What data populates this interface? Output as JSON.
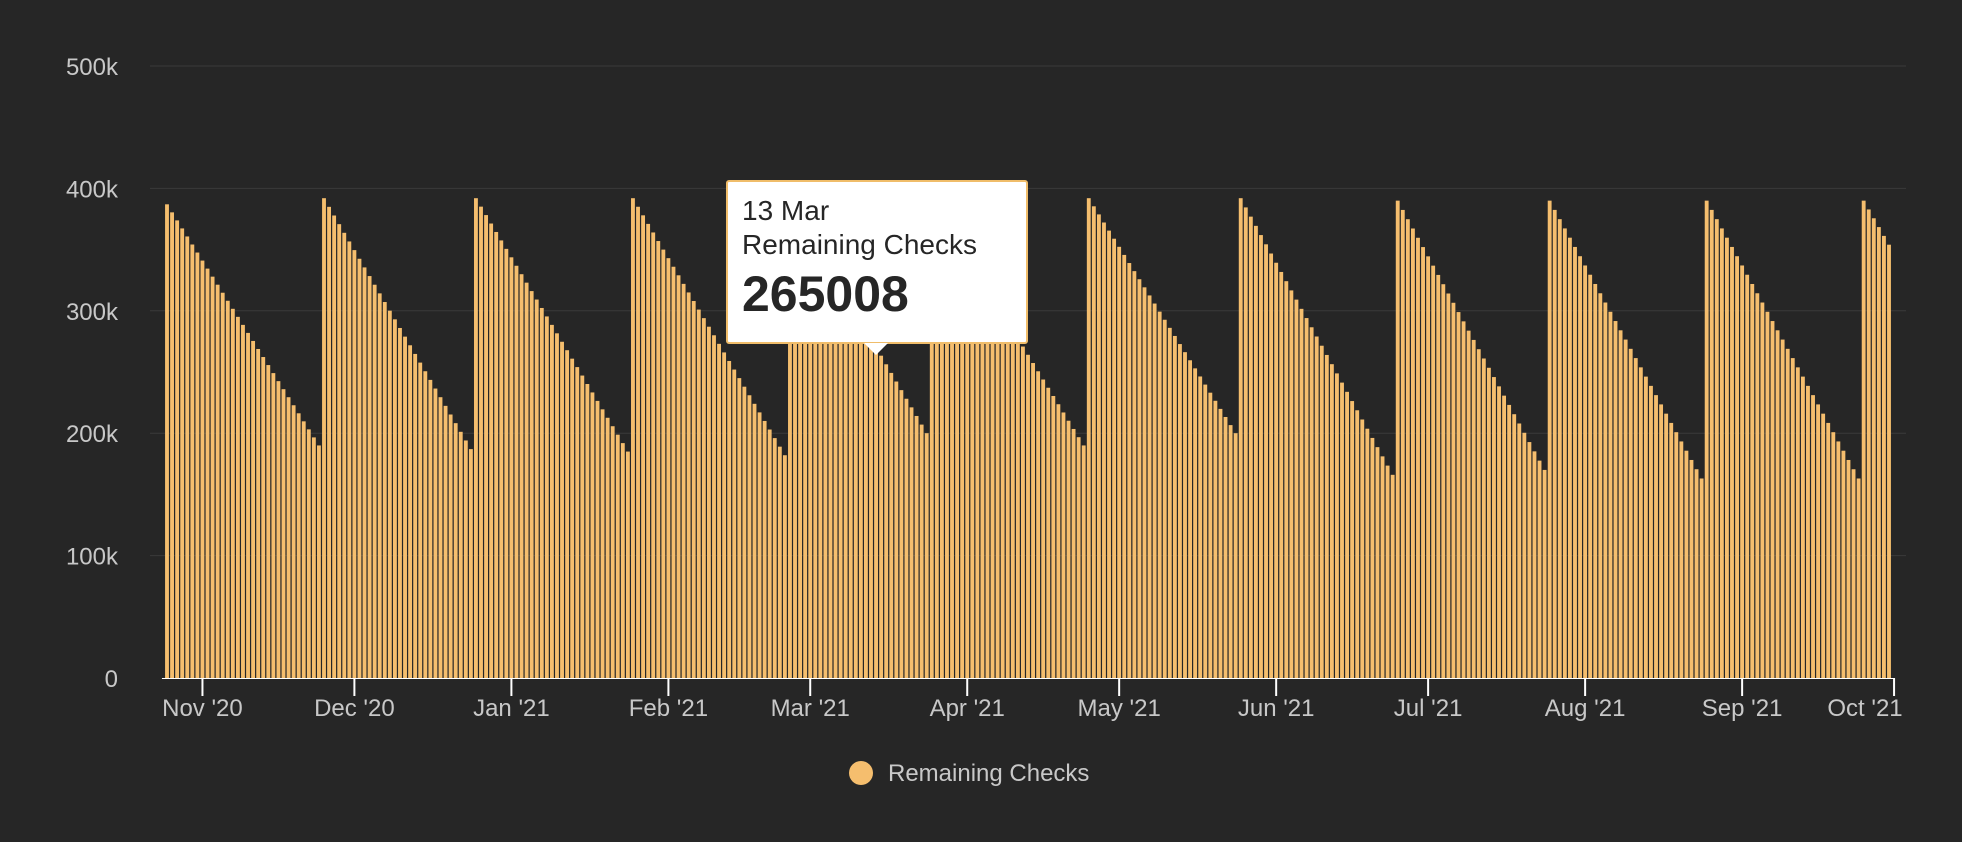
{
  "chart_data": {
    "type": "bar",
    "title": "",
    "xlabel": "",
    "ylabel": "",
    "ylim": [
      0,
      500000
    ],
    "y_ticks": [
      "0",
      "100k",
      "200k",
      "300k",
      "400k",
      "500k"
    ],
    "x_ticks": [
      "Nov '20",
      "Dec '20",
      "Jan '21",
      "Feb '21",
      "Mar '21",
      "Apr '21",
      "May '21",
      "Jun '21",
      "Jul '21",
      "Aug '21",
      "Sep '21",
      "Oct '21"
    ],
    "grid": true,
    "legend": "bottom-center",
    "bar_color": "#f5be6e",
    "series": [
      {
        "name": "Remaining Checks",
        "cycles": [
          {
            "start": "2020-10-25",
            "days": 31,
            "first": 387000,
            "last": 190000
          },
          {
            "start": "2020-11-25",
            "days": 30,
            "first": 392000,
            "last": 187000
          },
          {
            "start": "2020-12-25",
            "days": 31,
            "first": 392000,
            "last": 185000
          },
          {
            "start": "2021-01-25",
            "days": 31,
            "first": 392000,
            "last": 182000
          },
          {
            "start": "2021-02-25",
            "days": 28,
            "first": 390000,
            "last": 200000
          },
          {
            "start": "2021-03-25",
            "days": 31,
            "first": 392000,
            "last": 190000
          },
          {
            "start": "2021-04-25",
            "days": 30,
            "first": 392000,
            "last": 200000
          },
          {
            "start": "2021-05-25",
            "days": 31,
            "first": 392000,
            "last": 166000
          },
          {
            "start": "2021-06-25",
            "days": 30,
            "first": 390000,
            "last": 170000
          },
          {
            "start": "2021-07-25",
            "days": 31,
            "first": 390000,
            "last": 163000
          },
          {
            "start": "2021-08-25",
            "days": 31,
            "first": 390000,
            "last": 163000
          },
          {
            "start": "2021-09-25",
            "days": 6,
            "first": 390000,
            "last": 354000
          }
        ]
      }
    ],
    "tooltip": {
      "date": "13 Mar",
      "series": "Remaining Checks",
      "value": "265008"
    }
  }
}
